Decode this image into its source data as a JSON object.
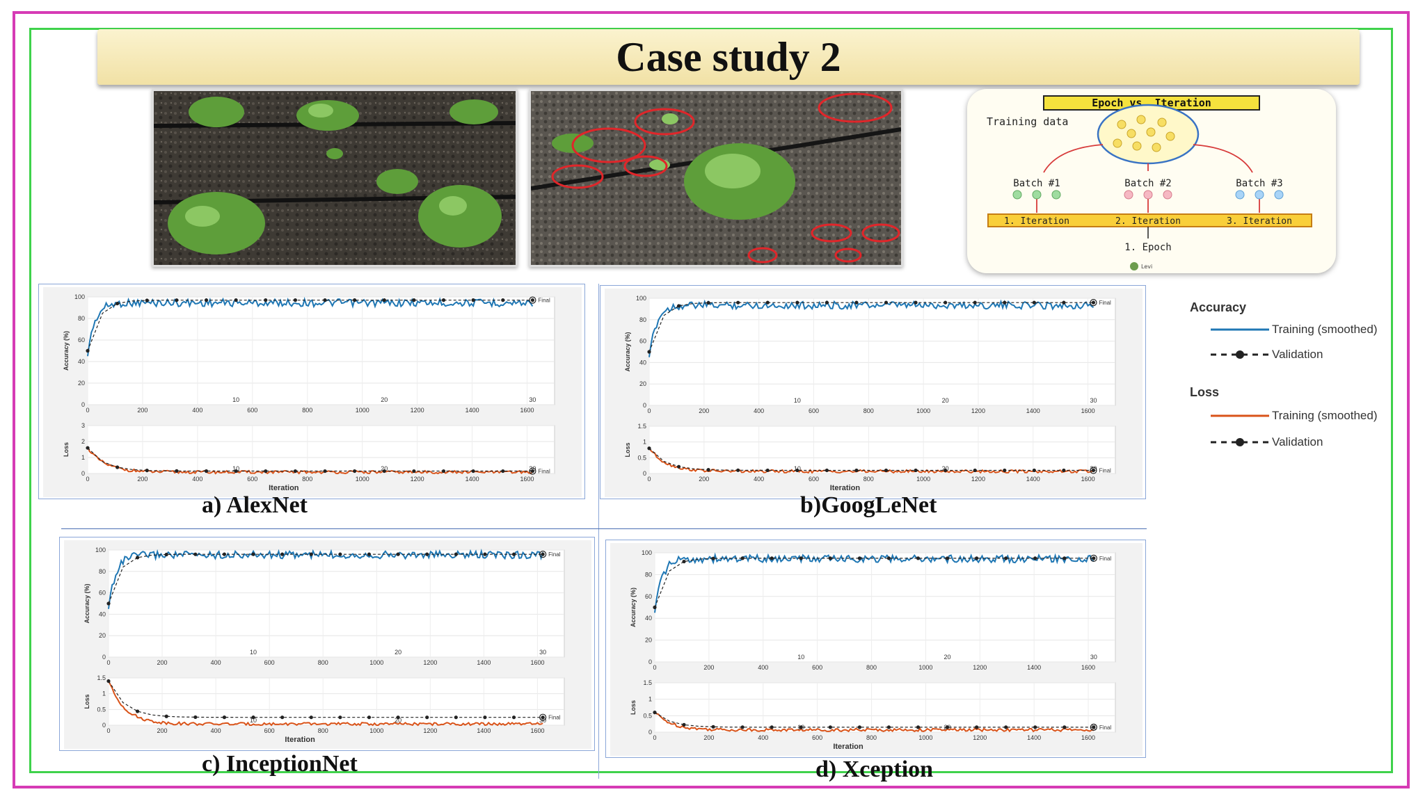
{
  "title": "Case study 2",
  "epoch_diagram": {
    "heading": "Epoch vs. Iteration",
    "training_data": "Training data",
    "batches": [
      "Batch #1",
      "Batch #2",
      "Batch #3"
    ],
    "iterations": [
      "1. Iteration",
      "2. Iteration",
      "3. Iteration"
    ],
    "epoch": "1. Epoch",
    "author": "Levi"
  },
  "legend": {
    "accuracy_title": "Accuracy",
    "loss_title": "Loss",
    "training": "Training (smoothed)",
    "validation": "Validation",
    "colors": {
      "accuracy": "#1f77b4",
      "loss": "#d95319"
    }
  },
  "axis_text": {
    "accuracy_ylabel": "Accuracy (%)",
    "loss_ylabel": "Loss",
    "xlabel": "Iteration",
    "final": "Final"
  },
  "panels": [
    {
      "caption": "a) AlexNet"
    },
    {
      "caption": "b)GoogLeNet"
    },
    {
      "caption": "c) InceptionNet"
    },
    {
      "caption": "d) Xception"
    }
  ],
  "chart_data": [
    {
      "type": "line",
      "name": "AlexNet accuracy",
      "x_ticks": [
        0,
        200,
        400,
        600,
        800,
        1000,
        1200,
        1400,
        1600
      ],
      "epoch_ticks": [
        10,
        20,
        30
      ],
      "y_ticks": [
        0,
        20,
        40,
        60,
        80,
        100
      ],
      "ylim": [
        0,
        100
      ],
      "xlim": [
        0,
        1700
      ],
      "training_final": 98,
      "validation_final": 97,
      "series": [
        {
          "name": "Training (smoothed)"
        },
        {
          "name": "Validation"
        }
      ]
    },
    {
      "type": "line",
      "name": "AlexNet loss",
      "x_ticks": [
        0,
        200,
        400,
        600,
        800,
        1000,
        1200,
        1400,
        1600
      ],
      "epoch_ticks": [
        10,
        20,
        30
      ],
      "y_ticks": [
        0,
        1,
        2,
        3
      ],
      "ylim": [
        0,
        3
      ],
      "xlim": [
        0,
        1700
      ],
      "training_start": 1.6,
      "training_final": 0.05,
      "validation_final": 0.15
    },
    {
      "type": "line",
      "name": "GoogLeNet accuracy",
      "x_ticks": [
        0,
        200,
        400,
        600,
        800,
        1000,
        1200,
        1400,
        1600
      ],
      "epoch_ticks": [
        10,
        20,
        30
      ],
      "y_ticks": [
        0,
        20,
        40,
        60,
        80,
        100
      ],
      "ylim": [
        0,
        100
      ],
      "xlim": [
        0,
        1700
      ],
      "training_final": 97,
      "validation_final": 96
    },
    {
      "type": "line",
      "name": "GoogLeNet loss",
      "x_ticks": [
        0,
        200,
        400,
        600,
        800,
        1000,
        1200,
        1400,
        1600
      ],
      "epoch_ticks": [
        10,
        20,
        30
      ],
      "y_ticks": [
        0,
        0.5,
        1,
        1.5
      ],
      "ylim": [
        0,
        1.5
      ],
      "xlim": [
        0,
        1700
      ],
      "training_start": 0.8,
      "training_final": 0.05,
      "validation_final": 0.1
    },
    {
      "type": "line",
      "name": "InceptionNet accuracy",
      "x_ticks": [
        0,
        200,
        400,
        600,
        800,
        1000,
        1200,
        1400,
        1600
      ],
      "epoch_ticks": [
        10,
        20,
        30
      ],
      "y_ticks": [
        0,
        20,
        40,
        60,
        80,
        100
      ],
      "ylim": [
        0,
        100
      ],
      "xlim": [
        0,
        1700
      ],
      "training_final": 99,
      "validation_final": 96
    },
    {
      "type": "line",
      "name": "InceptionNet loss",
      "x_ticks": [
        0,
        200,
        400,
        600,
        800,
        1000,
        1200,
        1400,
        1600
      ],
      "epoch_ticks": [
        10,
        20,
        30
      ],
      "y_ticks": [
        0,
        0.5,
        1,
        1.5
      ],
      "ylim": [
        0,
        1.5
      ],
      "xlim": [
        0,
        1700
      ],
      "training_start": 1.4,
      "training_final": 0.02,
      "validation_final": 0.25
    },
    {
      "type": "line",
      "name": "Xception accuracy",
      "x_ticks": [
        0,
        200,
        400,
        600,
        800,
        1000,
        1200,
        1400,
        1600
      ],
      "epoch_ticks": [
        10,
        20,
        30
      ],
      "y_ticks": [
        0,
        20,
        40,
        60,
        80,
        100
      ],
      "ylim": [
        0,
        100
      ],
      "xlim": [
        0,
        1700
      ],
      "training_final": 98,
      "validation_final": 95
    },
    {
      "type": "line",
      "name": "Xception loss",
      "x_ticks": [
        0,
        200,
        400,
        600,
        800,
        1000,
        1200,
        1400,
        1600
      ],
      "epoch_ticks": [
        10,
        20,
        30
      ],
      "y_ticks": [
        0,
        0.5,
        1,
        1.5
      ],
      "ylim": [
        0,
        1.5
      ],
      "xlim": [
        0,
        1700
      ],
      "training_start": 0.6,
      "training_final": 0.05,
      "validation_final": 0.15
    }
  ]
}
